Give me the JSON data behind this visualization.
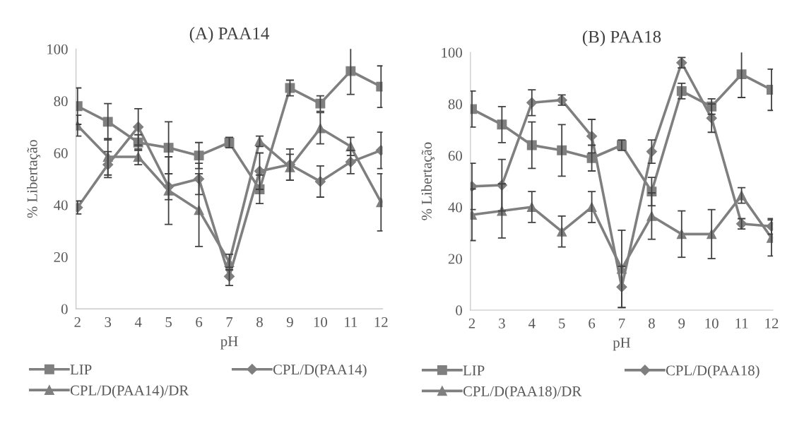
{
  "chart_data": [
    {
      "type": "line",
      "title": "(A) PAA14",
      "xlabel": "pH",
      "ylabel": "% Libertação",
      "categories": [
        "2",
        "3",
        "4",
        "5",
        "6",
        "7",
        "8",
        "9",
        "10",
        "11",
        "12"
      ],
      "ylim": [
        0,
        100
      ],
      "yticks": [
        0,
        20,
        40,
        60,
        80,
        100
      ],
      "grid": false,
      "legend": "bottom",
      "series": [
        {
          "name": "LIP",
          "color": "#7f7f7f",
          "marker": "square",
          "values": [
            78,
            72,
            64,
            62,
            59,
            64,
            46,
            85,
            79,
            91.5,
            85.5
          ],
          "errors": [
            7,
            7,
            3,
            10,
            5,
            2,
            5.5,
            3,
            3,
            9,
            8
          ]
        },
        {
          "name": "CPL/D(PAA14)",
          "color": "#7f7f7f",
          "marker": "diamond",
          "values": [
            39,
            55.5,
            70,
            47,
            50,
            12.5,
            53,
            55.5,
            49,
            56.5,
            61
          ],
          "errors": [
            2.5,
            5,
            7,
            5,
            6,
            3.5,
            7,
            6,
            6,
            4.5,
            7
          ]
        },
        {
          "name": "CPL/D(PAA14)/DR",
          "color": "#7f7f7f",
          "marker": "triangle",
          "values": [
            70.5,
            58.5,
            58.5,
            45.5,
            38,
            18,
            64.5,
            54.5,
            69.5,
            62.5,
            41
          ],
          "errors": [
            4,
            7,
            3,
            13,
            14,
            3,
            2,
            5,
            6,
            3.5,
            11
          ]
        }
      ]
    },
    {
      "type": "line",
      "title": "(B) PAA18",
      "xlabel": "pH",
      "ylabel": "% Libertação",
      "categories": [
        "2",
        "3",
        "4",
        "5",
        "6",
        "7",
        "8",
        "9",
        "10",
        "11",
        "12"
      ],
      "ylim": [
        0,
        100
      ],
      "yticks": [
        0,
        20,
        40,
        60,
        80,
        100
      ],
      "grid": false,
      "legend": "bottom",
      "series": [
        {
          "name": "LIP",
          "color": "#7f7f7f",
          "marker": "square",
          "values": [
            78,
            72,
            64,
            62,
            59,
            64,
            46,
            85,
            79,
            91.5,
            85.5
          ],
          "errors": [
            7,
            7,
            9,
            10,
            5,
            2,
            5.5,
            3,
            3,
            9,
            8
          ]
        },
        {
          "name": "CPL/D(PAA18)",
          "color": "#7f7f7f",
          "marker": "diamond",
          "values": [
            48,
            48.5,
            80.5,
            81.5,
            67.5,
            9,
            61.5,
            96,
            74.5,
            33.5,
            32.5
          ],
          "errors": [
            9,
            10,
            5,
            2,
            6.5,
            8,
            4.5,
            2,
            5.5,
            2,
            3
          ]
        },
        {
          "name": "CPL/D(PAA18)/DR",
          "color": "#7f7f7f",
          "marker": "triangle",
          "values": [
            37,
            38.5,
            40,
            30.5,
            40,
            16,
            36.5,
            29.5,
            29.5,
            44.5,
            28
          ],
          "errors": [
            10,
            10.5,
            6,
            6,
            6,
            15,
            9,
            9,
            9.5,
            3,
            7
          ]
        }
      ]
    }
  ]
}
